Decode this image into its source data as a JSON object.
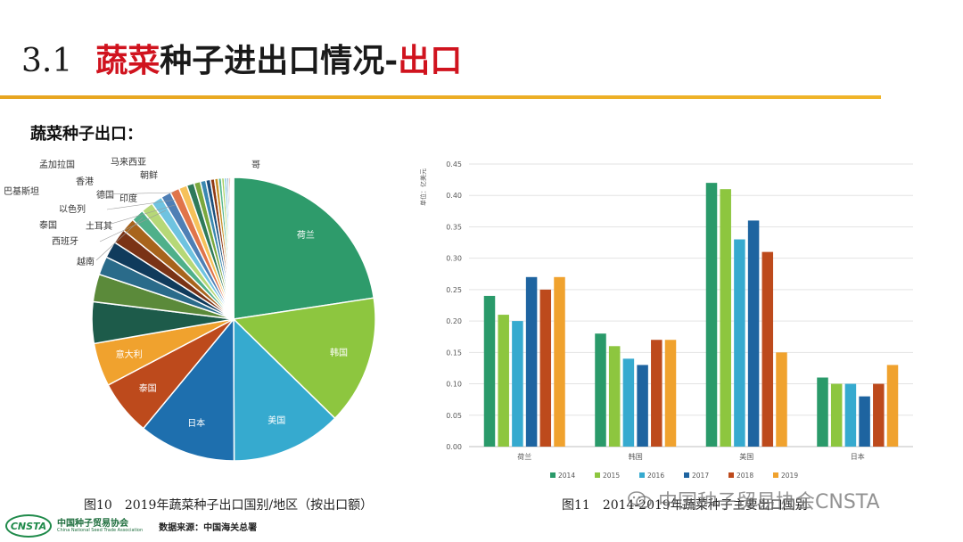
{
  "title": {
    "number": "3.1",
    "highlight": "蔬菜",
    "main": "种子进出口情况-",
    "suffix": "出口"
  },
  "section_label": "蔬菜种子出口：",
  "captions": {
    "pie": "图10　2019年蔬菜种子出口国别/地区（按出口额）",
    "bar": "图11　2014-2019年蔬菜种子主要出口国别"
  },
  "watermark": "中国种子贸易协会CNSTA",
  "footer": {
    "logo_text": "CNSTA",
    "org_cn": "中国种子贸易协会",
    "org_en": "China National Seed Trade Association",
    "source": "数据来源：中国海关总署"
  },
  "chart_data": [
    {
      "type": "pie",
      "slices": [
        {
          "label": "荷兰",
          "value": 21.5,
          "color": "#2e9b6b"
        },
        {
          "label": "韩国",
          "value": 14.0,
          "color": "#8dc63f"
        },
        {
          "label": "美国",
          "value": 12.0,
          "color": "#36aacf"
        },
        {
          "label": "日本",
          "value": 10.5,
          "color": "#1e6fae"
        },
        {
          "label": "泰国",
          "value": 6.0,
          "color": "#bd4a1c"
        },
        {
          "label": "意大利",
          "value": 4.7,
          "color": "#f0a22e"
        },
        {
          "label": "",
          "value": 4.5,
          "color": "#1d5b4a"
        },
        {
          "label": "",
          "value": 3.0,
          "color": "#5b8a3a"
        },
        {
          "label": "",
          "value": 2.0,
          "color": "#2a6b8a"
        },
        {
          "label": "越南",
          "value": 1.8,
          "color": "#103b5c"
        },
        {
          "label": "西班牙",
          "value": 1.6,
          "color": "#7a3316"
        },
        {
          "label": "泰国",
          "value": 1.5,
          "color": "#a8641c"
        },
        {
          "label": "土耳其",
          "value": 1.4,
          "color": "#4fb08a"
        },
        {
          "label": "以色列",
          "value": 1.3,
          "color": "#b6d877"
        },
        {
          "label": "巴基斯坦",
          "value": 1.2,
          "color": "#6fc3e0"
        },
        {
          "label": "印度",
          "value": 1.1,
          "color": "#4f7fb5"
        },
        {
          "label": "德国",
          "value": 1.0,
          "color": "#e0744a"
        },
        {
          "label": "香港",
          "value": 0.9,
          "color": "#f6c15a"
        },
        {
          "label": "孟加拉国",
          "value": 0.8,
          "color": "#2f7a5a"
        },
        {
          "label": "朝鲜",
          "value": 0.7,
          "color": "#7aa83e"
        },
        {
          "label": "马来西亚",
          "value": 0.6,
          "color": "#3a88b0"
        },
        {
          "label": "",
          "value": 0.5,
          "color": "#1c4f7c"
        },
        {
          "label": "",
          "value": 0.45,
          "color": "#8f3a14"
        },
        {
          "label": "",
          "value": 0.4,
          "color": "#c79025"
        },
        {
          "label": "",
          "value": 0.35,
          "color": "#58b88f"
        },
        {
          "label": "",
          "value": 0.3,
          "color": "#a9cf62"
        },
        {
          "label": "",
          "value": 0.25,
          "color": "#58b4d6"
        },
        {
          "label": "",
          "value": 0.2,
          "color": "#396fa6"
        },
        {
          "label": "",
          "value": 0.18,
          "color": "#c85a30"
        },
        {
          "label": "",
          "value": 0.15,
          "color": "#f3b446"
        },
        {
          "label": "",
          "value": 0.12,
          "color": "#2a8060"
        },
        {
          "label": "",
          "value": 0.1,
          "color": "#86b94a"
        }
      ],
      "outer_labels": [
        "孟加拉国",
        "马来西亚",
        "朝鲜",
        "香港",
        "巴基斯坦",
        "德国",
        "印度",
        "以色列",
        "土耳其",
        "泰国",
        "西班牙",
        "越南",
        "哥"
      ]
    },
    {
      "type": "bar",
      "categories": [
        "荷兰",
        "韩国",
        "美国",
        "日本"
      ],
      "series": [
        {
          "name": "2014",
          "color": "#2a9a6a",
          "values": [
            0.24,
            0.18,
            0.42,
            0.11
          ]
        },
        {
          "name": "2015",
          "color": "#8dc63f",
          "values": [
            0.21,
            0.16,
            0.41,
            0.1
          ]
        },
        {
          "name": "2016",
          "color": "#36aacf",
          "values": [
            0.2,
            0.14,
            0.33,
            0.1
          ]
        },
        {
          "name": "2017",
          "color": "#1e64a0",
          "values": [
            0.27,
            0.13,
            0.36,
            0.08
          ]
        },
        {
          "name": "2018",
          "color": "#bd4a1c",
          "values": [
            0.25,
            0.17,
            0.31,
            0.1
          ]
        },
        {
          "name": "2019",
          "color": "#f0a22e",
          "values": [
            0.27,
            0.17,
            0.15,
            0.13
          ]
        }
      ],
      "ylabel": "单位：亿美元",
      "ylim": [
        0,
        0.45
      ],
      "yticks": [
        "0.00",
        "0.05",
        "0.10",
        "0.15",
        "0.20",
        "0.25",
        "0.30",
        "0.35",
        "0.40",
        "0.45"
      ],
      "grid": true,
      "legend_position": "bottom"
    }
  ]
}
